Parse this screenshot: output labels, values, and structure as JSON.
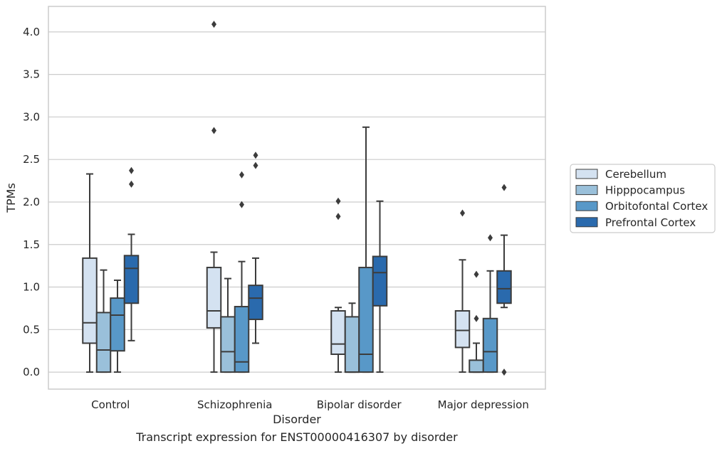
{
  "chart_data": {
    "type": "box",
    "title": "",
    "caption": "Transcript expression for ENST00000416307 by disorder",
    "xlabel": "Disorder",
    "ylabel": "TPMs",
    "ylim": [
      -0.2,
      4.3
    ],
    "yticks": [
      "0.0",
      "0.5",
      "1.0",
      "1.5",
      "2.0",
      "2.5",
      "3.0",
      "3.5",
      "4.0"
    ],
    "grid": true,
    "legend_position": "right",
    "categories": [
      "Control",
      "Schizophrenia",
      "Bipolar disorder",
      "Major depression"
    ],
    "series": [
      {
        "name": "Cerebellum",
        "color": "#d4e2f1",
        "boxes": [
          {
            "whislo": 0.0,
            "q1": 0.34,
            "med": 0.58,
            "q3": 1.34,
            "whishi": 2.33,
            "fliers": []
          },
          {
            "whislo": 0.0,
            "q1": 0.52,
            "med": 0.72,
            "q3": 1.23,
            "whishi": 1.41,
            "fliers": [
              2.84,
              4.09
            ]
          },
          {
            "whislo": 0.0,
            "q1": 0.21,
            "med": 0.33,
            "q3": 0.72,
            "whishi": 0.76,
            "fliers": [
              1.83,
              2.01
            ]
          },
          {
            "whislo": 0.0,
            "q1": 0.29,
            "med": 0.49,
            "q3": 0.72,
            "whishi": 1.32,
            "fliers": [
              1.87
            ]
          }
        ]
      },
      {
        "name": "Hipppocampus",
        "color": "#9ac0da",
        "boxes": [
          {
            "whislo": 0.0,
            "q1": 0.0,
            "med": 0.26,
            "q3": 0.7,
            "whishi": 1.2,
            "fliers": []
          },
          {
            "whislo": 0.0,
            "q1": 0.0,
            "med": 0.24,
            "q3": 0.65,
            "whishi": 1.1,
            "fliers": []
          },
          {
            "whislo": 0.0,
            "q1": 0.0,
            "med": 0.0,
            "q3": 0.65,
            "whishi": 0.81,
            "fliers": []
          },
          {
            "whislo": 0.0,
            "q1": 0.0,
            "med": 0.0,
            "q3": 0.14,
            "whishi": 0.34,
            "fliers": [
              0.63,
              1.15
            ]
          }
        ]
      },
      {
        "name": "Orbitofontal Cortex",
        "color": "#5898c8",
        "boxes": [
          {
            "whislo": 0.0,
            "q1": 0.25,
            "med": 0.67,
            "q3": 0.87,
            "whishi": 1.08,
            "fliers": []
          },
          {
            "whislo": 0.0,
            "q1": 0.0,
            "med": 0.12,
            "q3": 0.77,
            "whishi": 1.3,
            "fliers": [
              1.97,
              2.32
            ]
          },
          {
            "whislo": 0.0,
            "q1": 0.0,
            "med": 0.21,
            "q3": 1.23,
            "whishi": 2.88,
            "fliers": []
          },
          {
            "whislo": 0.0,
            "q1": 0.0,
            "med": 0.24,
            "q3": 0.63,
            "whishi": 1.19,
            "fliers": [
              1.58
            ]
          }
        ]
      },
      {
        "name": "Prefrontal Cortex",
        "color": "#2a6aad",
        "boxes": [
          {
            "whislo": 0.37,
            "q1": 0.81,
            "med": 1.22,
            "q3": 1.37,
            "whishi": 1.62,
            "fliers": [
              2.21,
              2.37
            ]
          },
          {
            "whislo": 0.34,
            "q1": 0.62,
            "med": 0.87,
            "q3": 1.02,
            "whishi": 1.34,
            "fliers": [
              2.43,
              2.55
            ]
          },
          {
            "whislo": 0.0,
            "q1": 0.78,
            "med": 1.17,
            "q3": 1.36,
            "whishi": 2.01,
            "fliers": []
          },
          {
            "whislo": 0.76,
            "q1": 0.81,
            "med": 0.98,
            "q3": 1.19,
            "whishi": 1.61,
            "fliers": [
              0.0,
              2.17
            ]
          }
        ]
      }
    ]
  }
}
